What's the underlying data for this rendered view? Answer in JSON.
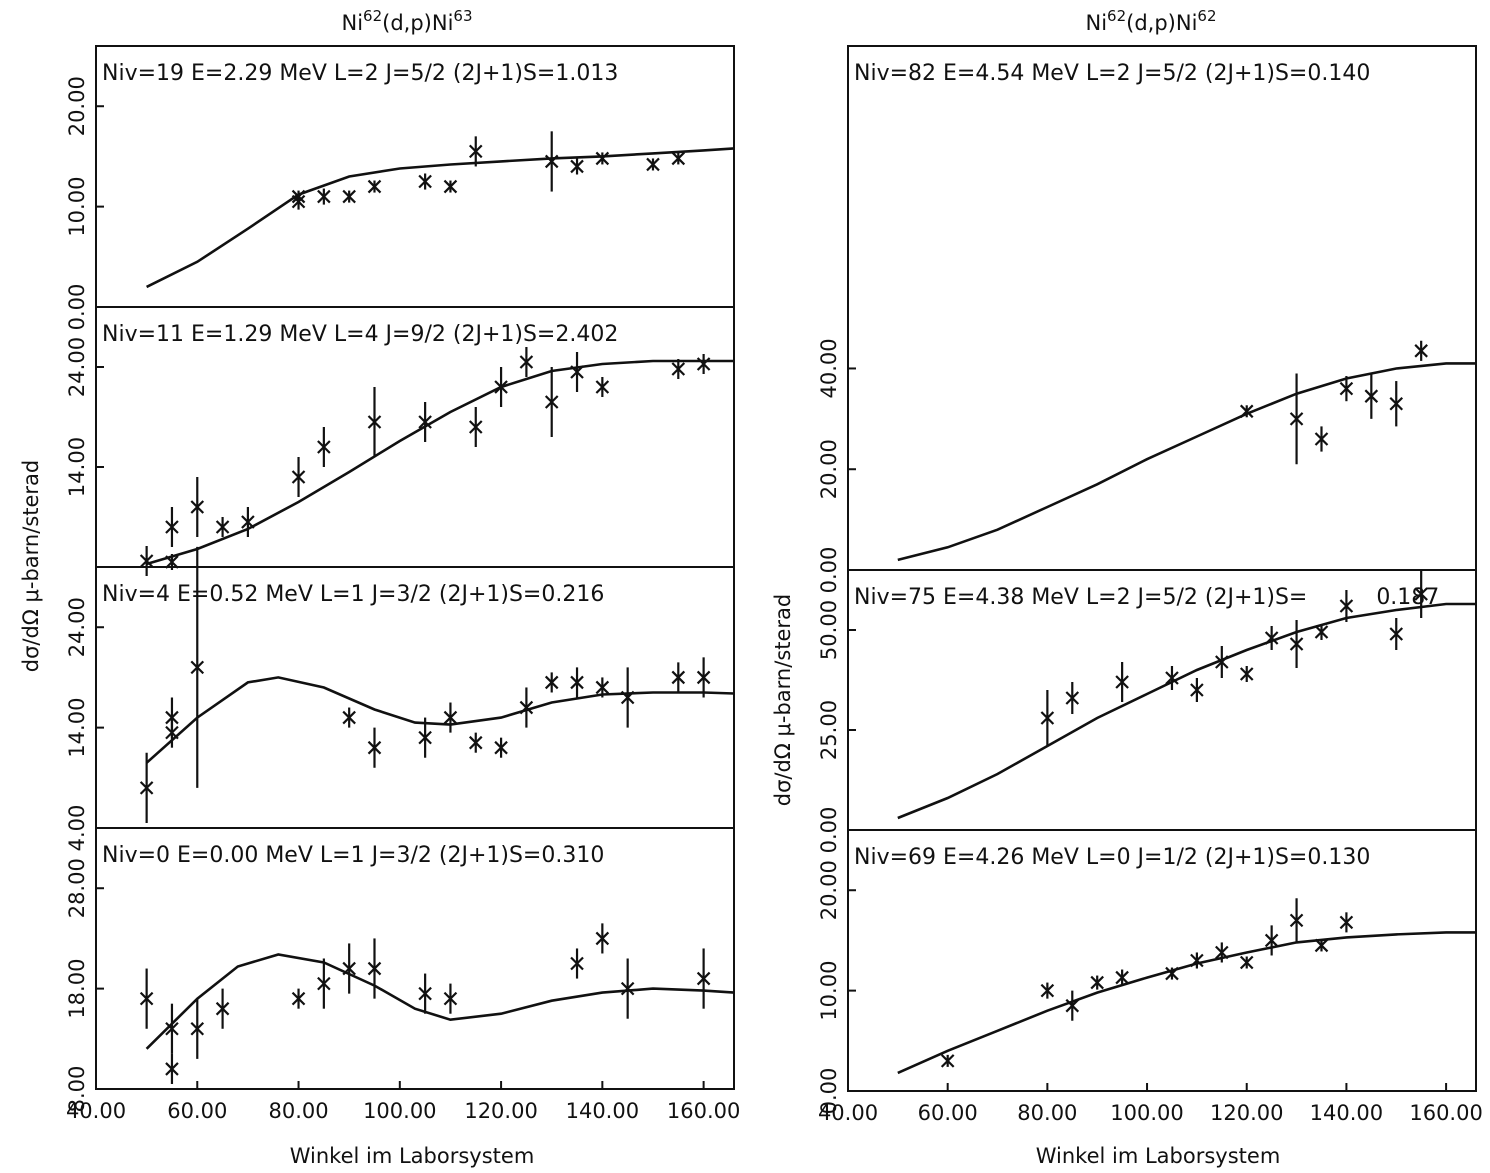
{
  "figure": {
    "ylabel": "dσ/dΩ μ-barn/sterad",
    "left_title": "Ni62(d,p)Ni63",
    "right_title": "Ni62(d,p)Ni62"
  },
  "chart_data": [
    {
      "type": "line",
      "column": "left",
      "panel": 1,
      "title": "Ni62(d,p)Ni63",
      "label": "Niv=19  E=2.29 MeV  L=2  J=5/2  (2J+1)S=1.013",
      "ylabel": "dσ/dΩ μ-barn/sterad",
      "xlim": [
        40,
        166
      ],
      "ylim": [
        0,
        26
      ],
      "yticks": [
        0,
        10,
        20
      ],
      "ytick_labels": [
        "0.00",
        "10.00",
        "20.00"
      ],
      "fit": [
        [
          50,
          2
        ],
        [
          60,
          4.5
        ],
        [
          70,
          7.8
        ],
        [
          80,
          11.2
        ],
        [
          90,
          13
        ],
        [
          100,
          13.8
        ],
        [
          110,
          14.2
        ],
        [
          120,
          14.5
        ],
        [
          130,
          14.8
        ],
        [
          140,
          15
        ],
        [
          150,
          15.3
        ],
        [
          160,
          15.6
        ],
        [
          166,
          15.8
        ]
      ],
      "points": [
        [
          80,
          10.5,
          0.8
        ],
        [
          80,
          11,
          0.5
        ],
        [
          85,
          11,
          0.8
        ],
        [
          90,
          11,
          0.5
        ],
        [
          95,
          12,
          0.6
        ],
        [
          105,
          12.5,
          0.8
        ],
        [
          110,
          12,
          0.5
        ],
        [
          115,
          15.5,
          1.5
        ],
        [
          130,
          14.5,
          3
        ],
        [
          135,
          14,
          0.8
        ],
        [
          140,
          14.8,
          0.5
        ],
        [
          150,
          14.2,
          0.5
        ],
        [
          155,
          14.8,
          0.5
        ]
      ]
    },
    {
      "type": "line",
      "column": "left",
      "panel": 2,
      "label": "Niv=11  E=1.29 MeV  L=4  J=9/2  (2J+1)S=2.402",
      "xlim": [
        40,
        166
      ],
      "ylim": [
        4,
        30
      ],
      "yticks": [
        14,
        24
      ],
      "ytick_labels": [
        "14.00",
        "24.00"
      ],
      "fit": [
        [
          50,
          4.3
        ],
        [
          60,
          5.8
        ],
        [
          70,
          7.8
        ],
        [
          80,
          10.5
        ],
        [
          90,
          13.5
        ],
        [
          100,
          16.6
        ],
        [
          110,
          19.5
        ],
        [
          120,
          22
        ],
        [
          130,
          23.6
        ],
        [
          140,
          24.3
        ],
        [
          150,
          24.6
        ],
        [
          160,
          24.6
        ],
        [
          166,
          24.6
        ]
      ],
      "points": [
        [
          50,
          4.6,
          1.5
        ],
        [
          55,
          4.5,
          0.8
        ],
        [
          55,
          8,
          2
        ],
        [
          60,
          10,
          3
        ],
        [
          65,
          8,
          1
        ],
        [
          70,
          8.5,
          1.5
        ],
        [
          80,
          13,
          2
        ],
        [
          85,
          16,
          2
        ],
        [
          95,
          18.5,
          3.5
        ],
        [
          105,
          18.5,
          2
        ],
        [
          115,
          18,
          2
        ],
        [
          120,
          22,
          2
        ],
        [
          125,
          24.5,
          1.5
        ],
        [
          130,
          20.5,
          3.5
        ],
        [
          135,
          23.5,
          2
        ],
        [
          140,
          22,
          1
        ],
        [
          155,
          23.8,
          1
        ],
        [
          160,
          24.3,
          1
        ]
      ]
    },
    {
      "type": "line",
      "column": "left",
      "panel": 3,
      "label": "Niv=4     E=0.52 MeV  L=1  J=3/2  (2J+1)S=0.216",
      "xlim": [
        40,
        166
      ],
      "ylim": [
        4,
        30
      ],
      "yticks": [
        4,
        14,
        24
      ],
      "ytick_labels": [
        "4.00",
        "14.00",
        "24.00"
      ],
      "fit": [
        [
          50,
          10.5
        ],
        [
          60,
          15
        ],
        [
          70,
          18.5
        ],
        [
          76,
          19
        ],
        [
          85,
          18
        ],
        [
          95,
          15.8
        ],
        [
          103,
          14.5
        ],
        [
          110,
          14.3
        ],
        [
          120,
          15
        ],
        [
          130,
          16.5
        ],
        [
          140,
          17.3
        ],
        [
          150,
          17.5
        ],
        [
          160,
          17.5
        ],
        [
          166,
          17.4
        ]
      ],
      "points": [
        [
          50,
          8,
          3.5
        ],
        [
          55,
          15,
          2
        ],
        [
          55,
          13.5,
          1.5
        ],
        [
          60,
          20,
          12
        ],
        [
          90,
          15,
          1
        ],
        [
          95,
          12,
          2
        ],
        [
          105,
          13,
          2
        ],
        [
          110,
          15,
          1.5
        ],
        [
          115,
          12.5,
          1
        ],
        [
          120,
          12,
          1
        ],
        [
          125,
          16,
          2
        ],
        [
          130,
          18.5,
          1
        ],
        [
          135,
          18.5,
          1.5
        ],
        [
          140,
          18,
          1
        ],
        [
          145,
          17,
          3
        ],
        [
          155,
          19,
          1.5
        ],
        [
          160,
          19,
          2
        ]
      ]
    },
    {
      "type": "line",
      "column": "left",
      "panel": 4,
      "label": "Niv=0  E=0.00 MeV  L=1  J=3/2  (2J+1)S=0.310",
      "xlabel": "Winkel im Laborsystem",
      "xlim": [
        40,
        166
      ],
      "ylim": [
        8,
        34
      ],
      "xticks": [
        40,
        60,
        80,
        100,
        120,
        140,
        160
      ],
      "xtick_labels": [
        "40.00",
        "60.00",
        "80.00",
        "100.00",
        "120.00",
        "140.00",
        "160.00"
      ],
      "yticks": [
        8,
        18,
        28
      ],
      "ytick_labels": [
        "8.00",
        "18.00",
        "28.00"
      ],
      "fit": [
        [
          50,
          12
        ],
        [
          60,
          17
        ],
        [
          68,
          20.2
        ],
        [
          76,
          21.4
        ],
        [
          85,
          20.6
        ],
        [
          95,
          18.3
        ],
        [
          103,
          16
        ],
        [
          110,
          14.9
        ],
        [
          120,
          15.5
        ],
        [
          130,
          16.8
        ],
        [
          140,
          17.6
        ],
        [
          150,
          18
        ],
        [
          160,
          17.8
        ],
        [
          166,
          17.6
        ]
      ],
      "points": [
        [
          50,
          17,
          3
        ],
        [
          55,
          14,
          2.5
        ],
        [
          55,
          10,
          1.5
        ],
        [
          60,
          14,
          3
        ],
        [
          65,
          16,
          2
        ],
        [
          80,
          17,
          1
        ],
        [
          85,
          18.5,
          2.5
        ],
        [
          90,
          20,
          2.5
        ],
        [
          95,
          20,
          3
        ],
        [
          105,
          17.5,
          2
        ],
        [
          110,
          17,
          1.5
        ],
        [
          135,
          20.5,
          1.5
        ],
        [
          140,
          23,
          1.5
        ],
        [
          145,
          18,
          3
        ],
        [
          160,
          19,
          3
        ]
      ]
    },
    {
      "type": "line",
      "column": "right",
      "panel": 1,
      "title": "Ni62(d,p)Ni62",
      "label": "Niv=82  E=4.54 MeV   L=2  J=5/2  (2J+1)S=0.140",
      "xlim": [
        40,
        166
      ],
      "ylim": [
        0,
        104
      ],
      "yticks": [
        0,
        20,
        40
      ],
      "ytick_labels": [
        "0.00",
        "20.00",
        "40.00"
      ],
      "fit": [
        [
          50,
          2
        ],
        [
          60,
          4.5
        ],
        [
          70,
          8
        ],
        [
          80,
          12.5
        ],
        [
          90,
          17
        ],
        [
          100,
          22
        ],
        [
          110,
          26.5
        ],
        [
          120,
          31
        ],
        [
          130,
          35
        ],
        [
          140,
          38
        ],
        [
          150,
          40
        ],
        [
          160,
          41
        ],
        [
          166,
          41
        ]
      ],
      "points": [
        [
          120,
          31.5,
          1
        ],
        [
          130,
          30,
          9
        ],
        [
          135,
          26,
          2.5
        ],
        [
          140,
          36,
          2.5
        ],
        [
          145,
          34.5,
          4.5
        ],
        [
          150,
          33,
          4.5
        ],
        [
          155,
          43.5,
          2
        ]
      ]
    },
    {
      "type": "line",
      "column": "right",
      "panel": 2,
      "label": "Niv=75  E=4.38 MeV   L=2  J=5/2  (2J+1)S=",
      "value_label": "0.187",
      "ylabel": "dσ/dΩ μ-barn/sterad",
      "xlim": [
        40,
        166
      ],
      "ylim": [
        0,
        65
      ],
      "yticks": [
        0,
        25,
        50
      ],
      "ytick_labels": [
        "0.00",
        "25.00",
        "50.00"
      ],
      "fit": [
        [
          50,
          3
        ],
        [
          60,
          8
        ],
        [
          70,
          14
        ],
        [
          80,
          21
        ],
        [
          90,
          28
        ],
        [
          100,
          34
        ],
        [
          110,
          40
        ],
        [
          120,
          45
        ],
        [
          130,
          49.5
        ],
        [
          140,
          53
        ],
        [
          150,
          55
        ],
        [
          160,
          56.5
        ],
        [
          166,
          56.5
        ]
      ],
      "points": [
        [
          80,
          28,
          7
        ],
        [
          85,
          33,
          4
        ],
        [
          95,
          37,
          5
        ],
        [
          105,
          38,
          3
        ],
        [
          110,
          35,
          3
        ],
        [
          115,
          42,
          4
        ],
        [
          120,
          39,
          2
        ],
        [
          125,
          48,
          3
        ],
        [
          130,
          46.5,
          6
        ],
        [
          135,
          49.5,
          2
        ],
        [
          140,
          56,
          4
        ],
        [
          150,
          49,
          4
        ],
        [
          155,
          59,
          6
        ]
      ]
    },
    {
      "type": "line",
      "column": "right",
      "panel": 3,
      "label": "Niv=69  E=4.26 MeV  L=0  J=1/2  (2J+1)S=0.130",
      "xlabel": "Winkel im Laborsystem",
      "xlim": [
        40,
        166
      ],
      "ylim": [
        0,
        26
      ],
      "xticks": [
        40,
        60,
        80,
        100,
        120,
        140,
        160
      ],
      "xtick_labels": [
        "40.00",
        "60.00",
        "80.00",
        "100.00",
        "120.00",
        "140.00",
        "160.00"
      ],
      "yticks": [
        0,
        10,
        20
      ],
      "ytick_labels": [
        "0.00",
        "10.00",
        "20.00"
      ],
      "fit": [
        [
          50,
          1.8
        ],
        [
          60,
          4
        ],
        [
          70,
          6
        ],
        [
          80,
          8
        ],
        [
          90,
          9.8
        ],
        [
          100,
          11.3
        ],
        [
          110,
          12.7
        ],
        [
          120,
          13.8
        ],
        [
          130,
          14.8
        ],
        [
          140,
          15.3
        ],
        [
          150,
          15.6
        ],
        [
          160,
          15.8
        ],
        [
          166,
          15.8
        ]
      ],
      "points": [
        [
          60,
          3,
          0.5
        ],
        [
          80,
          10,
          0.8
        ],
        [
          85,
          8.5,
          1.5
        ],
        [
          90,
          10.8,
          0.7
        ],
        [
          95,
          11.3,
          0.8
        ],
        [
          105,
          11.7,
          0.5
        ],
        [
          110,
          13,
          0.8
        ],
        [
          115,
          13.8,
          1
        ],
        [
          120,
          12.8,
          0.5
        ],
        [
          125,
          15,
          1.5
        ],
        [
          130,
          17,
          2.2
        ],
        [
          135,
          14.5,
          0.5
        ],
        [
          140,
          16.8,
          1
        ]
      ]
    }
  ]
}
